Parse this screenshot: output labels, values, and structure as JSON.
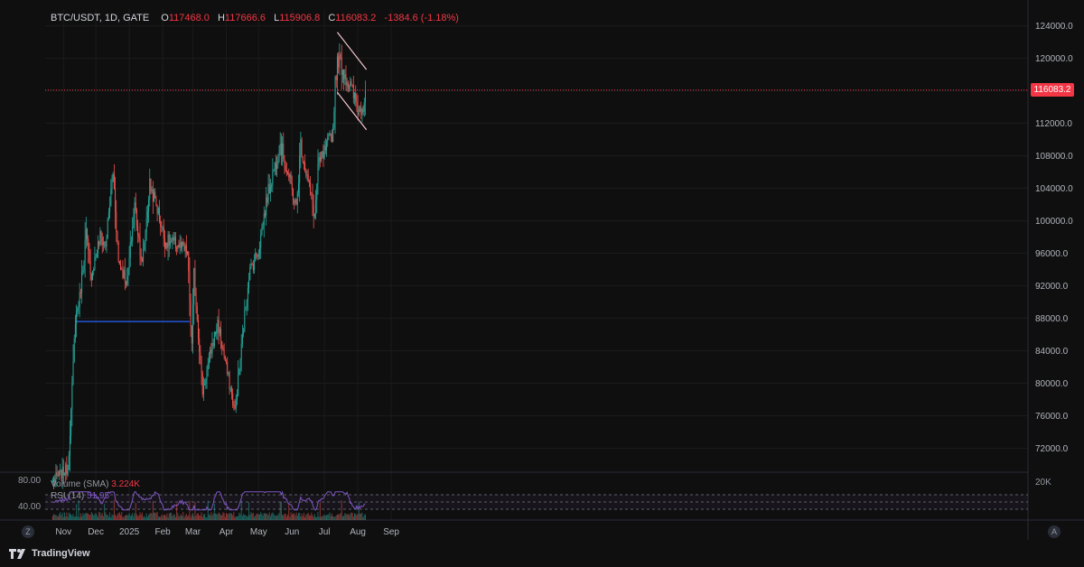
{
  "header": {
    "symbol": "BTC/USDT, 1D, GATE",
    "open_label": "O",
    "open": "117468.0",
    "high_label": "H",
    "high": "117666.6",
    "low_label": "L",
    "low": "115906.8",
    "close_label": "C",
    "close": "116083.2",
    "change": "-1384.6 (-1.18%)"
  },
  "last_price_tag": "116083.2",
  "volume_legend": {
    "label": "Volume (SMA)",
    "value": "3.224K"
  },
  "rsi_legend": {
    "label": "RSI (14)",
    "value": "51.95"
  },
  "lower_pane_scale": {
    "left_top": "80.00",
    "left_bottom": "40.00",
    "right_top": "20K"
  },
  "brand": "TradingView",
  "timezone_button": "Z",
  "auto_button": "A",
  "colors": {
    "up": "#26a69a",
    "down": "#ef5350",
    "background": "#0f0f0f",
    "rsi": "#7e57c2",
    "hline": "#2962ff"
  },
  "chart_data": {
    "type": "candlestick",
    "y_ticks": [
      72000,
      76000,
      80000,
      84000,
      88000,
      92000,
      96000,
      100000,
      104000,
      108000,
      112000,
      116000,
      120000,
      124000
    ],
    "y_tick_labels": [
      "72000.0",
      "76000.0",
      "80000.0",
      "84000.0",
      "88000.0",
      "92000.0",
      "96000.0",
      "100000.0",
      "104000.0",
      "108000.0",
      "112000.0",
      "",
      "120000.0",
      "124000.0"
    ],
    "x_tick_labels": [
      "Nov",
      "Dec",
      "2025",
      "Feb",
      "Mar",
      "Apr",
      "May",
      "Jun",
      "Jul",
      "Aug",
      "Sep"
    ],
    "x_tick_dates": [
      "2024-11-01",
      "2024-12-01",
      "2025-01-01",
      "2025-02-01",
      "2025-03-01",
      "2025-04-01",
      "2025-05-01",
      "2025-06-01",
      "2025-07-01",
      "2025-08-01",
      "2025-09-01"
    ],
    "ylim": [
      69500,
      125500
    ],
    "last_price": 116083.2,
    "anchors": [
      [
        "2024-10-22",
        68000
      ],
      [
        "2024-11-05",
        69500
      ],
      [
        "2024-11-08",
        76500
      ],
      [
        "2024-11-12",
        88000
      ],
      [
        "2024-11-16",
        90500
      ],
      [
        "2024-11-22",
        98500
      ],
      [
        "2024-11-26",
        93000
      ],
      [
        "2024-12-05",
        98000
      ],
      [
        "2024-12-10",
        97000
      ],
      [
        "2024-12-17",
        106000
      ],
      [
        "2024-12-22",
        95000
      ],
      [
        "2024-12-30",
        92500
      ],
      [
        "2025-01-06",
        102000
      ],
      [
        "2025-01-13",
        94500
      ],
      [
        "2025-01-20",
        104500
      ],
      [
        "2025-01-27",
        101500
      ],
      [
        "2025-02-03",
        97500
      ],
      [
        "2025-02-15",
        97000
      ],
      [
        "2025-02-24",
        96000
      ],
      [
        "2025-02-28",
        84500
      ],
      [
        "2025-03-02",
        93500
      ],
      [
        "2025-03-10",
        79000
      ],
      [
        "2025-03-17",
        83500
      ],
      [
        "2025-03-24",
        87500
      ],
      [
        "2025-04-06",
        78500
      ],
      [
        "2025-04-09",
        76500
      ],
      [
        "2025-04-22",
        93500
      ],
      [
        "2025-05-01",
        96500
      ],
      [
        "2025-05-09",
        103000
      ],
      [
        "2025-05-21",
        109500
      ],
      [
        "2025-05-24",
        108000
      ],
      [
        "2025-06-05",
        101500
      ],
      [
        "2025-06-09",
        109500
      ],
      [
        "2025-06-17",
        104000
      ],
      [
        "2025-06-22",
        100500
      ],
      [
        "2025-06-25",
        106500
      ],
      [
        "2025-07-03",
        109000
      ],
      [
        "2025-07-09",
        111000
      ],
      [
        "2025-07-11",
        117500
      ],
      [
        "2025-07-14",
        120000
      ],
      [
        "2025-07-20",
        118000
      ],
      [
        "2025-07-25",
        116500
      ],
      [
        "2025-08-02",
        113500
      ],
      [
        "2025-08-06",
        114500
      ],
      [
        "2025-08-08",
        116083.2
      ]
    ],
    "horizontal_line": {
      "value": 87600,
      "from": "2024-11-12",
      "to": "2025-02-26"
    },
    "channel": {
      "upper": [
        [
          "2025-07-13",
          123200
        ],
        [
          "2025-08-09",
          118600
        ]
      ],
      "lower": [
        [
          "2025-07-13",
          115800
        ],
        [
          "2025-08-09",
          111200
        ]
      ]
    },
    "rsi_levels": [
      70,
      50,
      30
    ]
  }
}
